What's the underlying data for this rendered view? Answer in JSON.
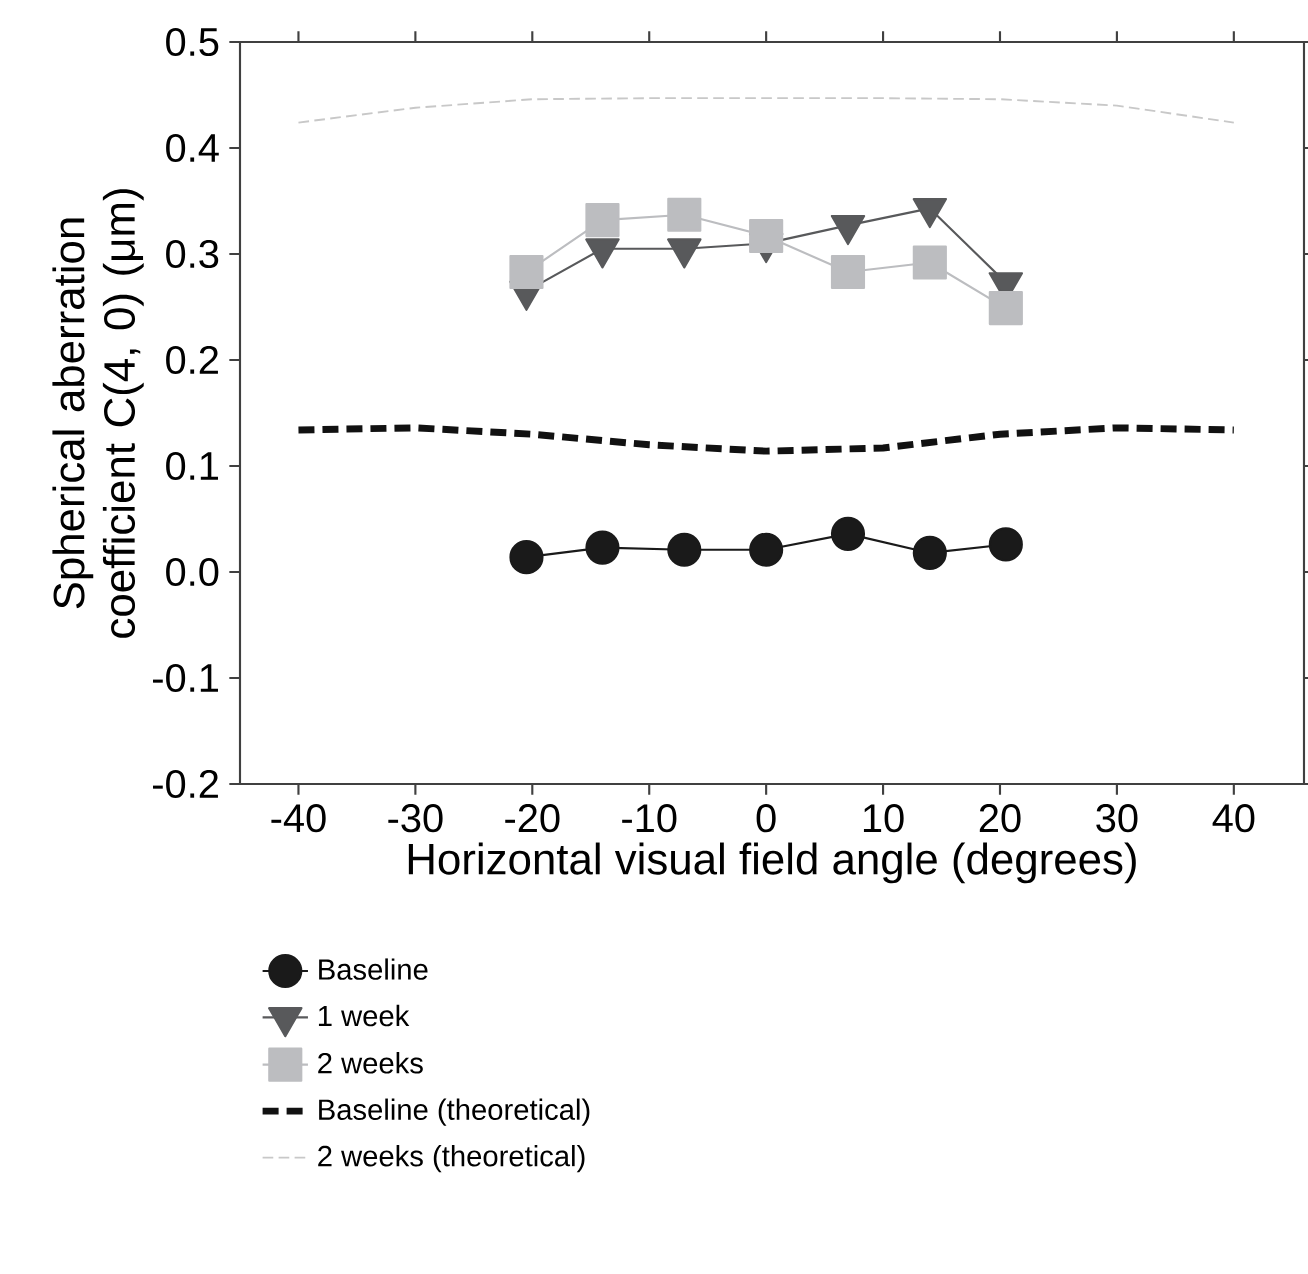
{
  "chart_data": {
    "type": "line",
    "xlabel": "Horizontal visual field angle (degrees)",
    "ylabel": "Spherical aberration coefficient C(4, 0) (μm)",
    "xlim": [
      -45,
      46
    ],
    "ylim": [
      -0.2,
      0.5
    ],
    "xticks": [
      -40,
      -30,
      -20,
      -10,
      0,
      10,
      20,
      30,
      40
    ],
    "yticks": [
      -0.2,
      -0.1,
      {
        "value": 0,
        "label": "0.0"
      },
      0.1,
      0.2,
      0.3,
      0.4,
      0.5
    ],
    "grid": false,
    "legend": "bottom",
    "series": [
      {
        "name": "Baseline",
        "color": "#1a1a1a",
        "marker": "circle",
        "line_style": "solid",
        "x": [
          -20.5,
          -14,
          -7,
          0,
          7,
          14,
          20.5
        ],
        "values": [
          0.014,
          0.023,
          0.021,
          0.021,
          0.036,
          0.018,
          0.026
        ]
      },
      {
        "name": "1 week",
        "color": "#58595b",
        "marker": "triangle",
        "line_style": "solid",
        "x": [
          -20.5,
          -14,
          -7,
          0,
          7,
          14,
          20.5
        ],
        "values": [
          0.265,
          0.305,
          0.305,
          0.31,
          0.327,
          0.343,
          0.273
        ]
      },
      {
        "name": "2 weeks",
        "color": "#bcbdc0",
        "marker": "square",
        "line_style": "solid",
        "x": [
          -20.5,
          -14,
          -7,
          0,
          7,
          14,
          20.5
        ],
        "values": [
          0.283,
          0.332,
          0.337,
          0.317,
          0.283,
          0.292,
          0.249
        ]
      },
      {
        "name": "Baseline (theoretical)",
        "color": "#111111",
        "marker": "none",
        "line_style": "dashed",
        "x": [
          -40,
          -30,
          -20,
          -10,
          0,
          10,
          20,
          30,
          40
        ],
        "values": [
          0.134,
          0.136,
          0.13,
          0.12,
          0.114,
          0.117,
          0.13,
          0.136,
          0.134
        ]
      },
      {
        "name": "2 weeks (theoretical)",
        "color": "#c8c8c8",
        "marker": "none",
        "line_style": "dashed",
        "x": [
          -40,
          -30,
          -20,
          -10,
          0,
          10,
          20,
          30,
          40
        ],
        "values": [
          0.424,
          0.438,
          0.446,
          0.447,
          0.447,
          0.447,
          0.446,
          0.44,
          0.424
        ]
      }
    ]
  }
}
